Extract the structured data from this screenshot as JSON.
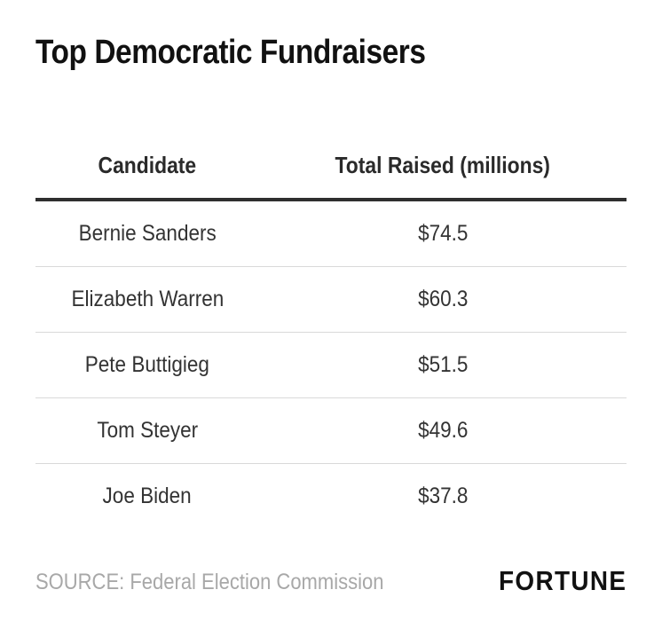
{
  "title": "Top Democratic Fundraisers",
  "source": "SOURCE: Federal Election Commission",
  "logo_text": "FORTUNE",
  "chart_data": {
    "type": "table",
    "title": "Top Democratic Fundraisers",
    "columns": [
      "Candidate",
      "Total Raised (millions)"
    ],
    "rows": [
      [
        "Bernie Sanders",
        "$74.5"
      ],
      [
        "Elizabeth Warren",
        "$60.3"
      ],
      [
        "Pete Buttigieg",
        "$51.5"
      ],
      [
        "Tom Steyer",
        "$49.6"
      ],
      [
        "Joe Biden",
        "$37.8"
      ]
    ],
    "values": [
      74.5,
      60.3,
      51.5,
      49.6,
      37.8
    ]
  }
}
